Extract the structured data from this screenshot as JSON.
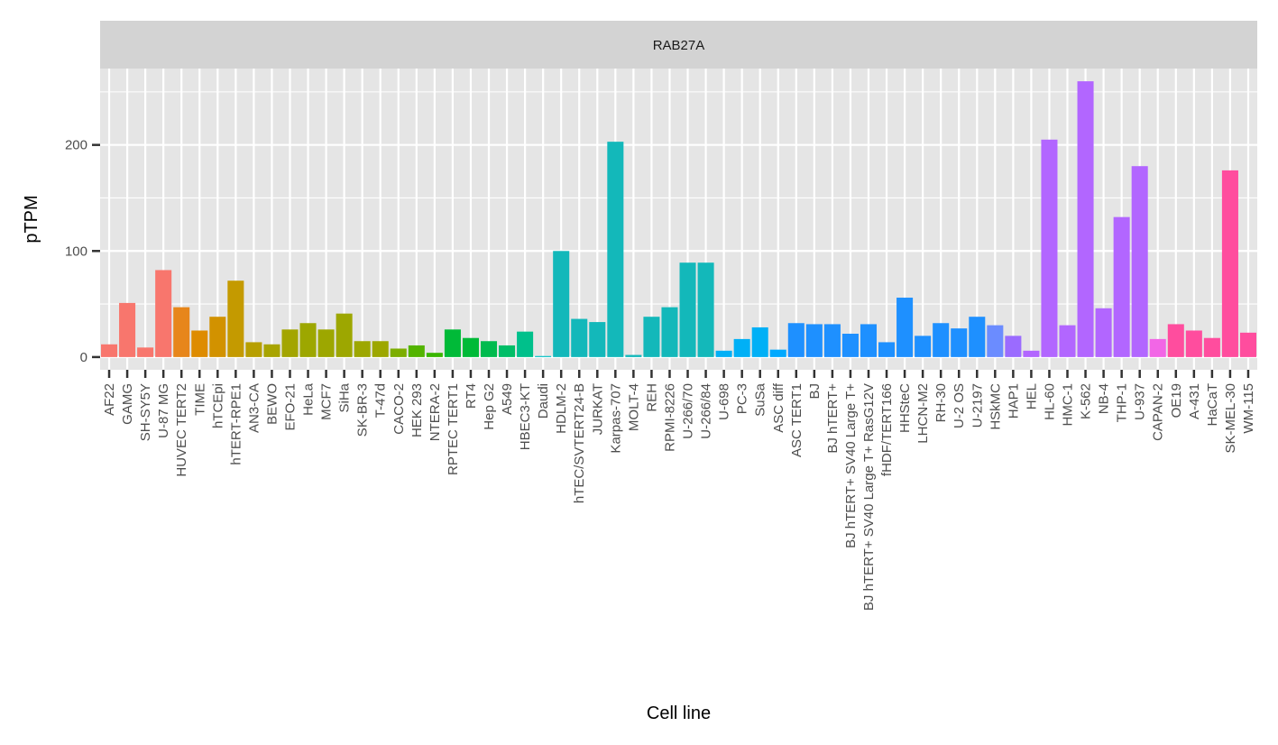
{
  "chart_data": {
    "type": "bar",
    "title": "",
    "facet_label": "RAB27A",
    "xlabel": "Cell line",
    "ylabel": "pTPM",
    "ylim": [
      -12,
      272
    ],
    "yticks": [
      0,
      100,
      200
    ],
    "grid": true,
    "legend": "none",
    "categories": [
      "AF22",
      "GAMG",
      "SH-SY5Y",
      "U-87 MG",
      "HUVEC TERT2",
      "TIME",
      "hTCEpi",
      "hTERT-RPE1",
      "AN3-CA",
      "BEWO",
      "EFO-21",
      "HeLa",
      "MCF7",
      "SiHa",
      "SK-BR-3",
      "T-47d",
      "CACO-2",
      "HEK 293",
      "NTERA-2",
      "RPTEC TERT1",
      "RT4",
      "Hep G2",
      "A549",
      "HBEC3-KT",
      "Daudi",
      "HDLM-2",
      "hTEC/SVTERT24-B",
      "JURKAT",
      "Karpas-707",
      "MOLT-4",
      "REH",
      "RPMI-8226",
      "U-266/70",
      "U-266/84",
      "U-698",
      "PC-3",
      "SuSa",
      "ASC diff",
      "ASC TERT1",
      "BJ",
      "BJ hTERT+",
      "BJ hTERT+ SV40 Large T+",
      "BJ hTERT+ SV40 Large T+ RasG12V",
      "fHDF/TERT166",
      "HHSteC",
      "LHCN-M2",
      "RH-30",
      "U-2 OS",
      "U-2197",
      "HSkMC",
      "HAP1",
      "HEL",
      "HL-60",
      "HMC-1",
      "K-562",
      "NB-4",
      "THP-1",
      "U-937",
      "CAPAN-2",
      "OE19",
      "A-431",
      "HaCaT",
      "SK-MEL-30",
      "WM-115"
    ],
    "values": [
      12,
      51,
      9,
      82,
      47,
      25,
      38,
      72,
      14,
      12,
      26,
      32,
      26,
      41,
      15,
      15,
      8,
      11,
      4,
      26,
      18,
      15,
      11,
      24,
      1,
      100,
      36,
      33,
      203,
      2,
      38,
      47,
      89,
      89,
      6,
      17,
      28,
      7,
      32,
      31,
      31,
      22,
      31,
      14,
      56,
      20,
      32,
      27,
      38,
      30,
      20,
      6,
      205,
      30,
      260,
      46,
      132,
      180,
      17,
      31,
      25,
      18,
      176,
      23
    ],
    "colors": [
      "#F8766D",
      "#F8766D",
      "#F8766D",
      "#F8766D",
      "#E7861B",
      "#DE8C00",
      "#D29200",
      "#C49A00",
      "#B79F00",
      "#A8A400",
      "#A3A500",
      "#9DA700",
      "#9DA700",
      "#9DA700",
      "#9DA700",
      "#9DA700",
      "#7CAE00",
      "#53B400",
      "#39B600",
      "#00BA38",
      "#00BA38",
      "#00BB4E",
      "#00BE67",
      "#00C08B",
      "#00BFC4",
      "#13B8BA",
      "#13B8BA",
      "#13B8BA",
      "#13B8BA",
      "#13B8BA",
      "#13B8BA",
      "#13B8BA",
      "#13B8BA",
      "#13B8BA",
      "#00B0F6",
      "#00B0F6",
      "#00B0F6",
      "#00A9FF",
      "#1E90FF",
      "#1E90FF",
      "#1E90FF",
      "#1E90FF",
      "#1E90FF",
      "#1E90FF",
      "#1E90FF",
      "#1E90FF",
      "#1E90FF",
      "#1E90FF",
      "#1E90FF",
      "#6B8CFF",
      "#9B6BFF",
      "#B266FF",
      "#B266FF",
      "#B266FF",
      "#B266FF",
      "#B266FF",
      "#B266FF",
      "#B266FF",
      "#F266E6",
      "#FF4D9E",
      "#FF4D9E",
      "#FF4D9E",
      "#FF4D9E",
      "#FF4D9E"
    ],
    "panel_background": "#E5E5E5",
    "strip_background": "#D3D3D3",
    "grid_color": "#FFFFFF"
  }
}
